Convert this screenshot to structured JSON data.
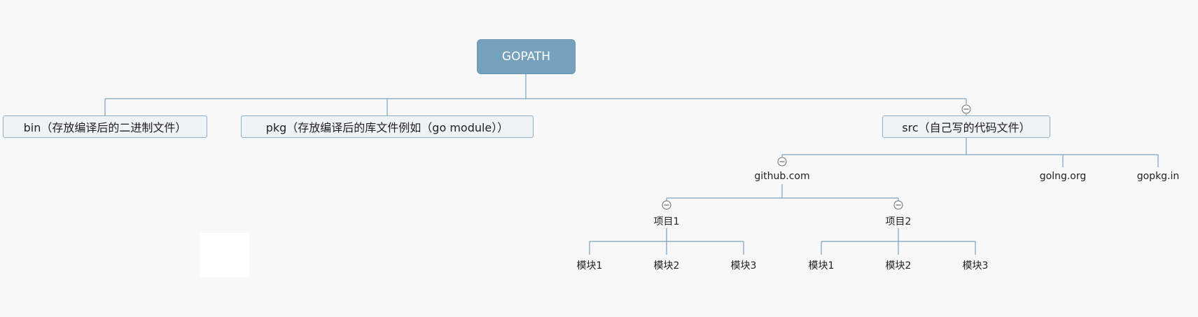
{
  "diagram": {
    "root": {
      "label": "GOPATH"
    },
    "bin": {
      "label": "bin（存放编译后的二进制文件）"
    },
    "pkg": {
      "label": "pkg（存放编译后的库文件例如（go module））"
    },
    "src": {
      "label": "src（自己写的代码文件）"
    },
    "github": {
      "label": "github.com"
    },
    "golng": {
      "label": "golng.org"
    },
    "gopkg": {
      "label": "gopkg.in"
    },
    "project1": {
      "label": "项目1",
      "modules": [
        "模块1",
        "模块2",
        "模块3"
      ]
    },
    "project2": {
      "label": "项目2",
      "modules": [
        "模块1",
        "模块2",
        "模块3"
      ]
    }
  },
  "colors": {
    "root_fill": "#76a1bd",
    "connector": "#7aa3bf",
    "box_fill": "#eef3f7",
    "box_border": "#8db0c7",
    "background": "#f8f8f8"
  }
}
